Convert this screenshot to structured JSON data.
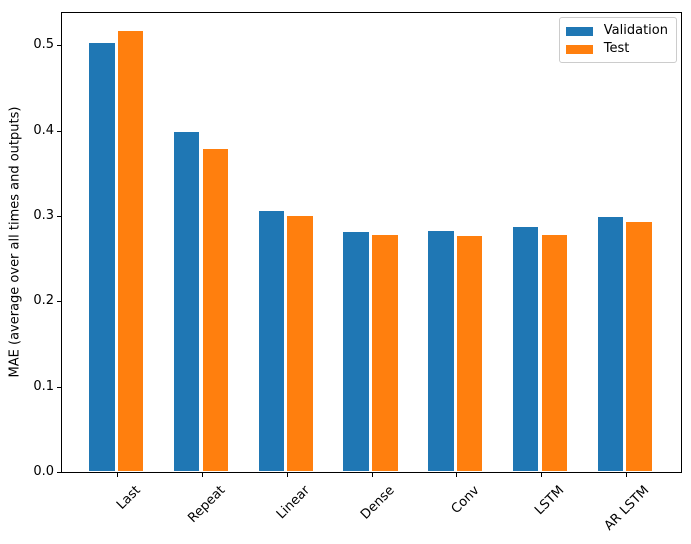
{
  "chart_data": {
    "type": "bar",
    "title": "",
    "xlabel": "",
    "ylabel": "MAE (average over all times and outputs)",
    "categories": [
      "Last",
      "Repeat",
      "Linear",
      "Dense",
      "Conv",
      "LSTM",
      "AR LSTM"
    ],
    "series": [
      {
        "name": "Validation",
        "color": "#1f77b4",
        "values": [
          0.502,
          0.397,
          0.305,
          0.28,
          0.281,
          0.286,
          0.298
        ]
      },
      {
        "name": "Test",
        "color": "#ff7f0e",
        "values": [
          0.516,
          0.377,
          0.299,
          0.277,
          0.275,
          0.277,
          0.292
        ]
      }
    ],
    "yticks": [
      "0.0",
      "0.1",
      "0.2",
      "0.3",
      "0.4",
      "0.5"
    ],
    "ylim": [
      0,
      0.538
    ],
    "xlim": [
      -0.652,
      6.652
    ],
    "bar_width": 0.3,
    "bar_offset": 0.17,
    "xtick_rotation_deg": 45,
    "grid": false,
    "legend": {
      "position": "upper right",
      "entries": [
        "Validation",
        "Test"
      ]
    },
    "colors": {
      "spine": "#000000",
      "background": "#ffffff",
      "legend_border": "#cccccc",
      "text": "#000000"
    }
  }
}
